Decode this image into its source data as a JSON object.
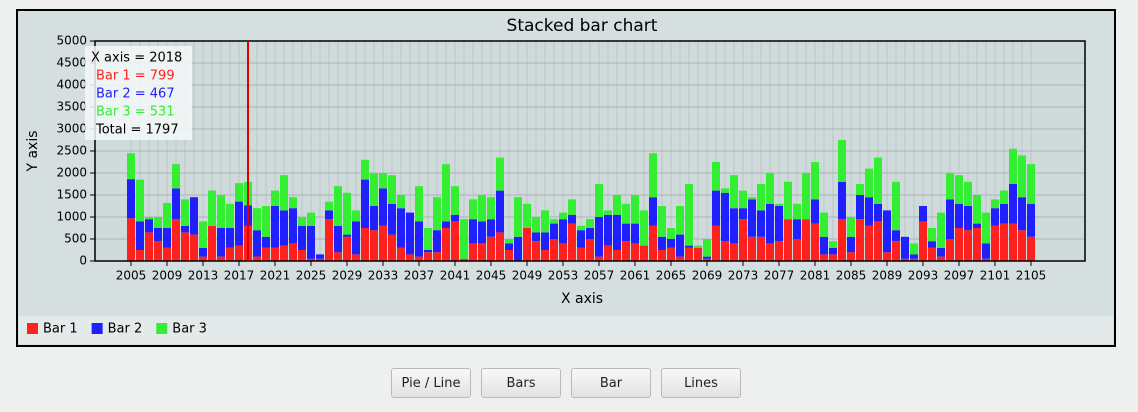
{
  "chart_data": {
    "type": "stacked_bar",
    "title": "Stacked bar chart",
    "x_label": "X axis",
    "y_label": "Y axis",
    "x": [
      2005,
      2006,
      2007,
      2008,
      2009,
      2010,
      2011,
      2012,
      2013,
      2014,
      2015,
      2016,
      2017,
      2018,
      2019,
      2020,
      2021,
      2022,
      2023,
      2024,
      2025,
      2026,
      2027,
      2028,
      2029,
      2030,
      2031,
      2032,
      2033,
      2034,
      2035,
      2036,
      2037,
      2038,
      2039,
      2040,
      2041,
      2042,
      2043,
      2044,
      2045,
      2046,
      2047,
      2048,
      2049,
      2050,
      2051,
      2052,
      2053,
      2054,
      2055,
      2056,
      2057,
      2058,
      2059,
      2060,
      2061,
      2062,
      2063,
      2064,
      2065,
      2066,
      2067,
      2068,
      2069,
      2070,
      2071,
      2072,
      2073,
      2074,
      2075,
      2076,
      2077,
      2078,
      2079,
      2080,
      2081,
      2082,
      2083,
      2084,
      2085,
      2086,
      2087,
      2088,
      2089,
      2090,
      2091,
      2092,
      2093,
      2094,
      2095,
      2096,
      2097,
      2098,
      2099,
      2100,
      2101,
      2102,
      2103,
      2104,
      2105
    ],
    "series": [
      {
        "name": "Bar 1",
        "color": "#ff2020",
        "values": [
          970,
          250,
          650,
          450,
          300,
          950,
          650,
          600,
          100,
          800,
          100,
          300,
          350,
          799,
          100,
          300,
          300,
          350,
          400,
          250,
          50,
          50,
          950,
          200,
          550,
          150,
          750,
          700,
          800,
          600,
          300,
          150,
          100,
          200,
          200,
          750,
          900,
          50,
          400,
          400,
          550,
          650,
          250,
          0,
          750,
          450,
          250,
          500,
          400,
          850,
          300,
          500,
          100,
          350,
          250,
          450,
          400,
          350,
          800,
          250,
          300,
          100,
          300,
          300,
          50,
          800,
          450,
          400,
          950,
          550,
          550,
          400,
          450,
          950,
          500,
          950,
          850,
          150,
          150,
          950,
          200,
          950,
          800,
          900,
          200,
          450,
          50,
          50,
          900,
          300,
          100,
          500,
          750,
          700,
          750,
          50,
          800,
          850,
          850,
          700,
          550
        ]
      },
      {
        "name": "Bar 2",
        "color": "#2020ff",
        "values": [
          890,
          650,
          300,
          300,
          450,
          700,
          150,
          850,
          200,
          0,
          650,
          450,
          1000,
          467,
          600,
          250,
          950,
          800,
          800,
          550,
          750,
          100,
          200,
          600,
          50,
          750,
          1100,
          550,
          850,
          700,
          900,
          950,
          800,
          50,
          500,
          150,
          150,
          0,
          550,
          500,
          400,
          950,
          150,
          550,
          0,
          200,
          400,
          350,
          550,
          200,
          400,
          250,
          900,
          700,
          800,
          400,
          450,
          0,
          650,
          300,
          200,
          500,
          50,
          0,
          50,
          800,
          1100,
          800,
          250,
          850,
          600,
          900,
          800,
          0,
          450,
          0,
          550,
          400,
          150,
          850,
          350,
          550,
          650,
          400,
          950,
          250,
          500,
          100,
          350,
          150,
          200,
          900,
          550,
          550,
          100,
          350,
          400,
          450,
          900,
          750,
          750
        ]
      },
      {
        "name": "Bar 3",
        "color": "#33ee33",
        "values": [
          590,
          950,
          50,
          250,
          570,
          550,
          600,
          0,
          600,
          800,
          750,
          550,
          420,
          531,
          500,
          700,
          350,
          800,
          250,
          200,
          300,
          0,
          200,
          900,
          950,
          250,
          450,
          750,
          350,
          650,
          300,
          0,
          800,
          500,
          750,
          1300,
          650,
          900,
          450,
          600,
          500,
          750,
          100,
          900,
          550,
          350,
          500,
          100,
          150,
          350,
          100,
          200,
          750,
          100,
          450,
          450,
          650,
          800,
          1000,
          700,
          250,
          650,
          1400,
          50,
          400,
          650,
          100,
          750,
          400,
          50,
          600,
          700,
          50,
          850,
          350,
          1050,
          850,
          550,
          150,
          950,
          450,
          250,
          650,
          1050,
          0,
          1100,
          0,
          250,
          0,
          300,
          800,
          600,
          650,
          550,
          650,
          700,
          200,
          300,
          800,
          950,
          900
        ]
      }
    ],
    "xlim": [
      2001,
      2111
    ],
    "xticks": [
      2005,
      2009,
      2013,
      2017,
      2021,
      2025,
      2029,
      2033,
      2037,
      2041,
      2045,
      2049,
      2053,
      2057,
      2061,
      2065,
      2069,
      2073,
      2077,
      2081,
      2085,
      2089,
      2093,
      2097,
      2101,
      2105
    ],
    "ylim": [
      0,
      5000
    ],
    "yticks": [
      0,
      500,
      1000,
      1500,
      2000,
      2500,
      3000,
      3500,
      4000,
      4500,
      5000
    ],
    "grid": true,
    "crosshair_x": 2018,
    "crosshair_color": "#e00000",
    "tooltip": [
      "X axis = 2018",
      "Bar 1 = 799",
      "Bar 2 = 467",
      "Bar 3 = 531",
      "Total = 1797"
    ],
    "legend_position": "bottom-left"
  },
  "buttons": [
    "Pie / Line",
    "Bars",
    "Bar",
    "Lines"
  ]
}
